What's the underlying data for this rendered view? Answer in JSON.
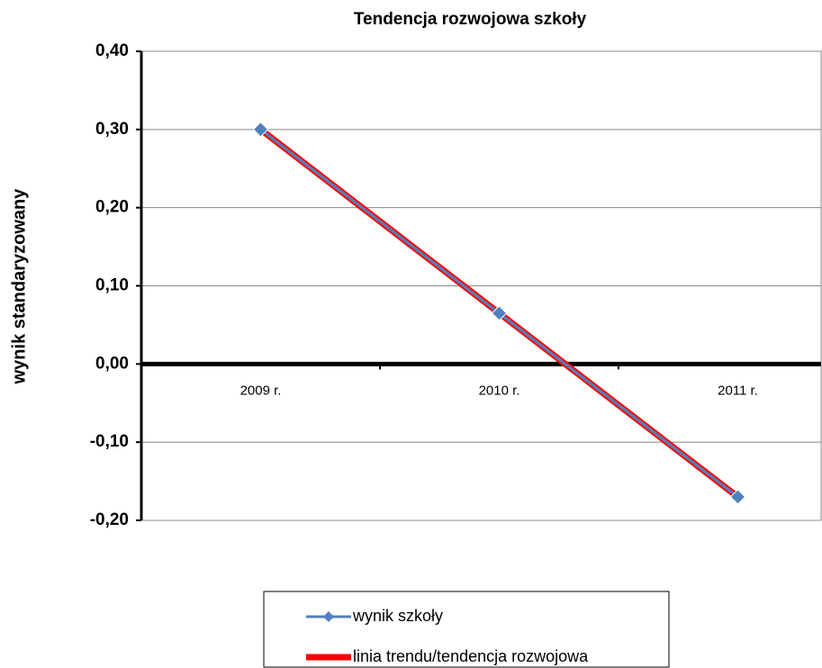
{
  "chart_data": {
    "type": "line",
    "title": "Tendencja rozwojowa szkoły",
    "y_label": "wynik standaryzowany",
    "categories": [
      "2009 r.",
      "2010 r.",
      "2011 r."
    ],
    "series": [
      {
        "name": "wynik szkoły",
        "color": "#4f81bd",
        "values": [
          0.3,
          0.065,
          -0.17
        ],
        "marker": "diamond"
      },
      {
        "name": "linia trendu/tendencja rozwojowa",
        "color": "#ff0000",
        "values": [
          0.3,
          0.065,
          -0.17
        ],
        "marker": "none"
      }
    ],
    "ylim": [
      -0.2,
      0.4
    ],
    "yticks": [
      {
        "value": -0.2,
        "label": "-0,20"
      },
      {
        "value": -0.1,
        "label": "-0,10"
      },
      {
        "value": 0,
        "label": "0,00"
      },
      {
        "value": 0.1,
        "label": "0,10"
      },
      {
        "value": 0.2,
        "label": "0,20"
      },
      {
        "value": 0.3,
        "label": "0,30"
      },
      {
        "value": 0.4,
        "label": "0,40"
      }
    ],
    "grid": true
  }
}
